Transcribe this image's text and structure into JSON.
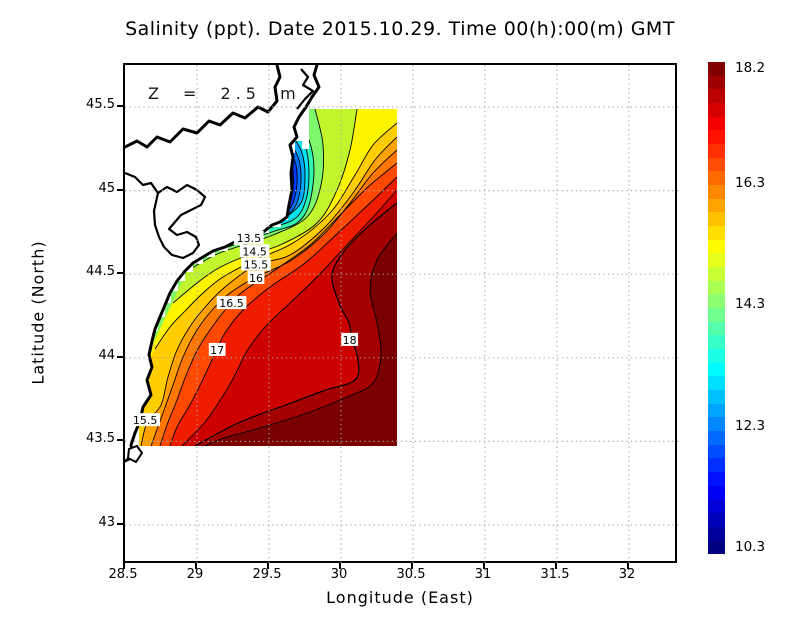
{
  "title": "Salinity (ppt). Date 2015.10.29. Time 00(h):00(m) GMT",
  "annotation": "Z = 2.5 m",
  "axes": {
    "x": {
      "label": "Longitude (East)",
      "ticks": [
        28.5,
        29,
        29.5,
        30,
        30.5,
        31,
        31.5,
        32
      ]
    },
    "y": {
      "label": "Latitude (North)",
      "ticks": [
        45.5,
        45,
        44.5,
        44,
        43.5,
        43
      ]
    }
  },
  "colorbar": {
    "min": 10.3,
    "max": 18.2,
    "tick_values": [
      18.2,
      16.3,
      14.3,
      12.3,
      10.3
    ],
    "palette": "jet"
  },
  "chart_data": {
    "type": "heatmap",
    "title": "Salinity (ppt). Date 2015.10.29. Time 00(h):00(m) GMT",
    "variable": "Salinity",
    "units": "ppt",
    "depth_label": "Z = 2.5 m",
    "date": "2015.10.29",
    "time": "00(h):00(m) GMT",
    "xlabel": "Longitude (East)",
    "ylabel": "Latitude (North)",
    "xlim": [
      28.5,
      32.35
    ],
    "ylim": [
      42.76,
      45.75
    ],
    "grid": "dotted 0.5 degree",
    "data_region": {
      "lon_min": 28.6,
      "lon_max": 30.4,
      "lat_min": 43.5,
      "lat_max": 45.5
    },
    "value_range": [
      10.3,
      18.2
    ],
    "contour_interval": 0.5,
    "contour_levels": [
      10.6,
      11,
      11.5,
      12,
      12.5,
      13,
      13.5,
      14,
      14.5,
      15,
      15.5,
      16,
      16.5,
      17,
      17.5,
      18,
      18.3
    ],
    "contour_labels": [
      {
        "value": "13.5",
        "lon": 29.36,
        "lat": 44.72
      },
      {
        "value": "14.5",
        "lon": 29.4,
        "lat": 44.64
      },
      {
        "value": "15.5",
        "lon": 29.41,
        "lat": 44.56
      },
      {
        "value": "16",
        "lon": 29.41,
        "lat": 44.48
      },
      {
        "value": "16.5",
        "lon": 29.24,
        "lat": 44.33
      },
      {
        "value": "17",
        "lon": 29.14,
        "lat": 44.05
      },
      {
        "value": "18",
        "lon": 30.06,
        "lat": 44.11
      },
      {
        "value": "15.5",
        "lon": 28.64,
        "lat": 43.63
      }
    ],
    "features": {
      "low_salinity_plume": {
        "lon": 29.66,
        "lat": 44.9,
        "approx_min": 10.3
      },
      "high_salinity_core": {
        "lon": 30.2,
        "lat": 43.6,
        "approx_max": 18.2
      }
    }
  }
}
